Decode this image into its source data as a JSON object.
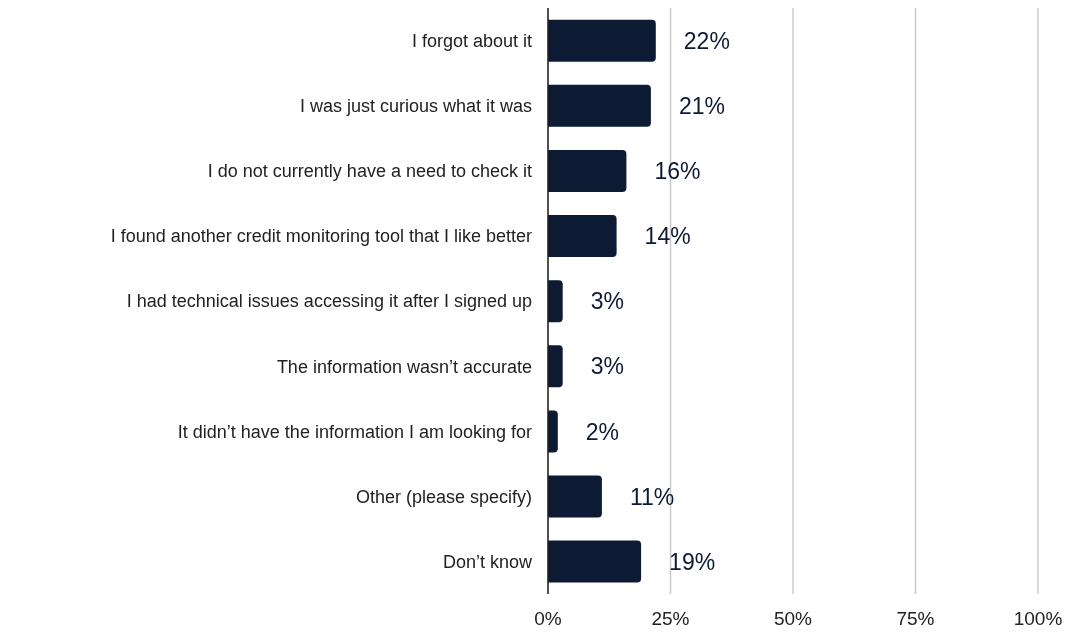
{
  "chart_data": {
    "type": "bar",
    "orientation": "horizontal",
    "categories": [
      "I forgot about it",
      "I was just curious what it was",
      "I do not currently have a need to check it",
      "I found another credit monitoring tool that I like better",
      "I had technical issues accessing it after I signed up",
      "The information wasn’t accurate",
      "It didn’t have the information I am looking for",
      "Other (please specify)",
      "Don’t know"
    ],
    "values": [
      22,
      21,
      16,
      14,
      3,
      3,
      2,
      11,
      19
    ],
    "value_labels": [
      "22%",
      "21%",
      "16%",
      "14%",
      "3%",
      "3%",
      "2%",
      "11%",
      "19%"
    ],
    "color": "#0c1a33",
    "xlim": [
      0,
      100
    ],
    "xticks": [
      {
        "value": 0,
        "label": "0%"
      },
      {
        "value": 25,
        "label": "25%"
      },
      {
        "value": 50,
        "label": "50%"
      },
      {
        "value": 75,
        "label": "75%"
      },
      {
        "value": 100,
        "label": "100%"
      }
    ],
    "grid": "x"
  }
}
